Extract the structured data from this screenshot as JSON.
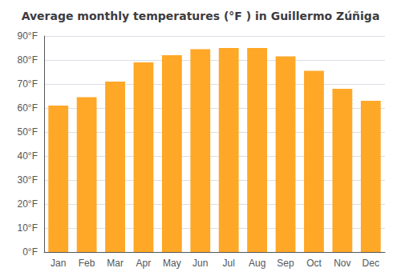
{
  "chart_data": {
    "type": "bar",
    "title": "Average monthly temperatures (°F ) in Guillermo Zúñiga",
    "categories": [
      "Jan",
      "Feb",
      "Mar",
      "Apr",
      "May",
      "Jun",
      "Jul",
      "Aug",
      "Sep",
      "Oct",
      "Nov",
      "Dec"
    ],
    "values": [
      61,
      64.5,
      71,
      79,
      82,
      84.5,
      85,
      85,
      81.5,
      75.5,
      68,
      63
    ],
    "color": "#FFA726",
    "ylim": [
      0,
      90
    ],
    "yticks": [
      {
        "value": 0,
        "label": "0°F"
      },
      {
        "value": 10,
        "label": "10°F"
      },
      {
        "value": 20,
        "label": "20°F"
      },
      {
        "value": 30,
        "label": "30°F"
      },
      {
        "value": 40,
        "label": "40°F"
      },
      {
        "value": 50,
        "label": "50°F"
      },
      {
        "value": 60,
        "label": "60°F"
      },
      {
        "value": 70,
        "label": "70°F"
      },
      {
        "value": 80,
        "label": "80°F"
      },
      {
        "value": 90,
        "label": "90°F"
      }
    ],
    "grid": true
  }
}
